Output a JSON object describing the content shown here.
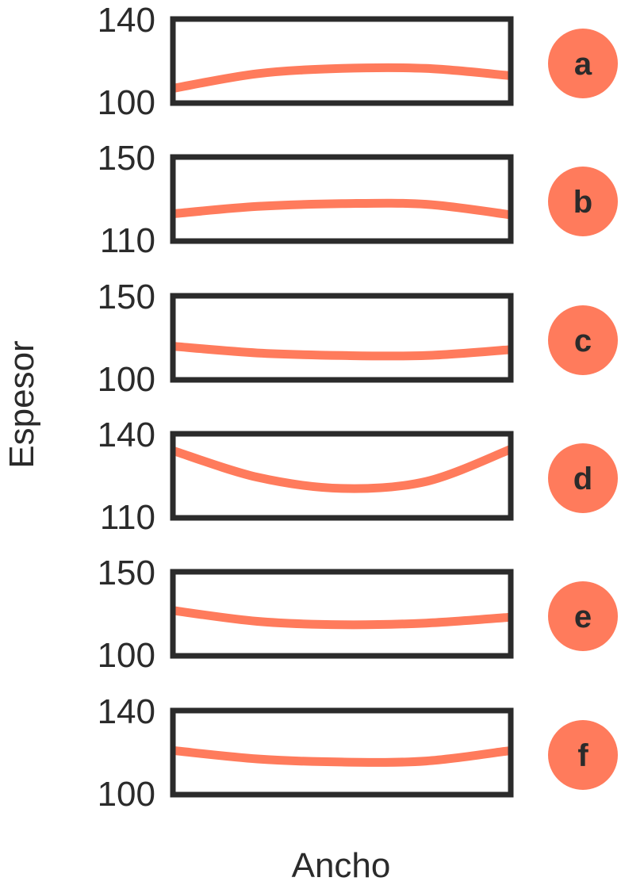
{
  "chart_data": {
    "type": "line",
    "xlabel": "Ancho",
    "ylabel": "Espesor",
    "colors": {
      "line": "#ff7b5c",
      "frame": "#2b2b2b",
      "badge": "#ff7b5c",
      "text": "#2b2b2b"
    },
    "panels": [
      {
        "label": "a",
        "ylim": [
          100,
          140
        ],
        "yticks": [
          "140",
          "100"
        ],
        "series": [
          {
            "x": [
              0,
              0.25,
              0.5,
              0.75,
              1.0
            ],
            "y": [
              107,
              114,
              116.5,
              116.5,
              113
            ]
          }
        ]
      },
      {
        "label": "b",
        "ylim": [
          110,
          150
        ],
        "yticks": [
          "150",
          "110"
        ],
        "series": [
          {
            "x": [
              0,
              0.25,
              0.5,
              0.75,
              1.0
            ],
            "y": [
              123,
              126.5,
              127.8,
              127.5,
              122.5
            ]
          }
        ]
      },
      {
        "label": "c",
        "ylim": [
          100,
          150
        ],
        "yticks": [
          "150",
          "100"
        ],
        "series": [
          {
            "x": [
              0,
              0.25,
              0.5,
              0.75,
              1.0
            ],
            "y": [
              120,
              116,
              114.5,
              114.5,
              118
            ]
          }
        ]
      },
      {
        "label": "d",
        "ylim": [
          110,
          140
        ],
        "yticks": [
          "140",
          "110"
        ],
        "series": [
          {
            "x": [
              0,
              0.25,
              0.5,
              0.75,
              1.0
            ],
            "y": [
              134,
              124.5,
              120.5,
              123,
              134.5
            ]
          }
        ]
      },
      {
        "label": "e",
        "ylim": [
          100,
          150
        ],
        "yticks": [
          "150",
          "100"
        ],
        "series": [
          {
            "x": [
              0,
              0.25,
              0.5,
              0.75,
              1.0
            ],
            "y": [
              127,
              120.5,
              118.5,
              119.5,
              123
            ]
          }
        ]
      },
      {
        "label": "f",
        "ylim": [
          100,
          140
        ],
        "yticks": [
          "140",
          "100"
        ],
        "series": [
          {
            "x": [
              0,
              0.25,
              0.5,
              0.75,
              1.0
            ],
            "y": [
              121,
              117,
              115.5,
              116,
              121
            ]
          }
        ]
      }
    ]
  }
}
